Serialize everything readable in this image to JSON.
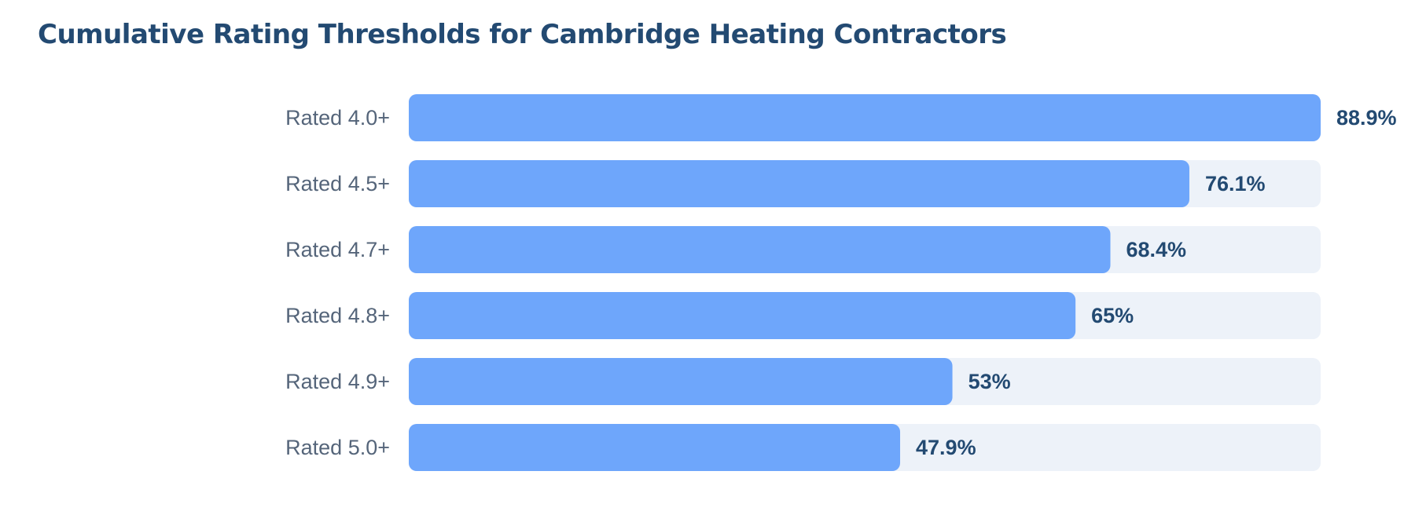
{
  "chart_data": {
    "type": "bar",
    "orientation": "horizontal",
    "title": "Cumulative Rating Thresholds for Cambridge Heating Contractors",
    "categories": [
      "Rated 4.0+",
      "Rated 4.5+",
      "Rated 4.7+",
      "Rated 4.8+",
      "Rated 4.9+",
      "Rated 5.0+"
    ],
    "values": [
      88.9,
      76.1,
      68.4,
      65,
      53,
      47.9
    ],
    "value_labels": [
      "88.9%",
      "76.1%",
      "68.4%",
      "65%",
      "53%",
      "47.9%"
    ],
    "xlim": [
      0,
      88.9
    ],
    "grid": false,
    "colors": {
      "bar": "#6ea6fb",
      "track": "#edf2f9",
      "title": "#234a72",
      "category_text": "#55657a",
      "value_text": "#234a72"
    }
  }
}
